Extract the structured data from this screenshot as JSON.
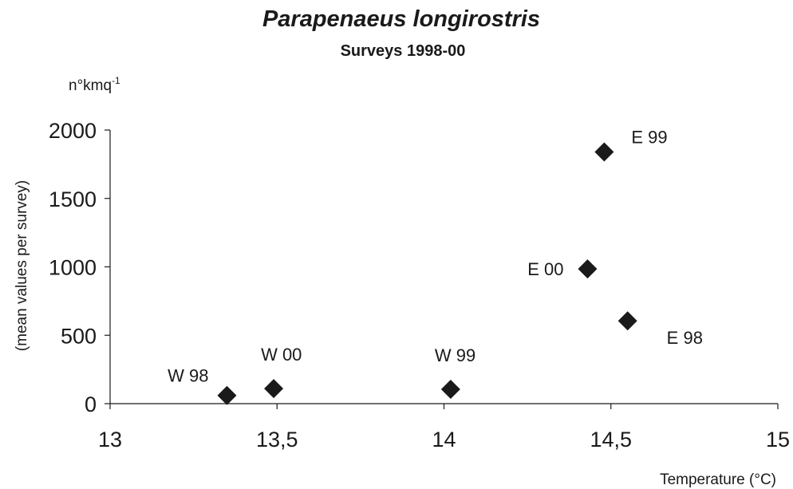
{
  "chart_data": {
    "type": "scatter",
    "title": "Parapenaeus longirostris",
    "subtitle": "Surveys 1998-00",
    "unit_label": "n°kmq",
    "unit_exponent": "-1",
    "xlabel": "Temperature (°C)",
    "ylabel": "(mean values per survey)",
    "xlim": [
      13,
      15
    ],
    "ylim": [
      0,
      2000
    ],
    "xticks": [
      "13",
      "13,5",
      "14",
      "14,5",
      "15"
    ],
    "yticks": [
      "0",
      "500",
      "1000",
      "1500",
      "2000"
    ],
    "grid": false,
    "marker": "diamond",
    "marker_color": "#1a1a1a",
    "points": [
      {
        "label": "W 98",
        "x": 13.35,
        "y": 60
      },
      {
        "label": "W 00",
        "x": 13.49,
        "y": 110
      },
      {
        "label": "W 99",
        "x": 14.02,
        "y": 105
      },
      {
        "label": "E 00",
        "x": 14.43,
        "y": 985
      },
      {
        "label": "E 99",
        "x": 14.48,
        "y": 1840
      },
      {
        "label": "E 98",
        "x": 14.55,
        "y": 605
      }
    ]
  }
}
